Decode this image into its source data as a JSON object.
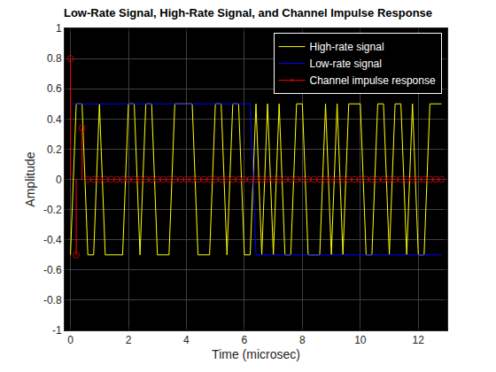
{
  "chart_data": {
    "type": "line",
    "title": "Low-Rate Signal, High-Rate Signal, and Channel Impulse Response",
    "x_label": "Time (microsec)",
    "y_label": "Amplitude",
    "x": [
      0,
      0.2,
      0.4,
      0.6,
      0.8,
      1,
      1.2,
      1.4,
      1.6,
      1.8,
      2,
      2.2,
      2.4,
      2.6,
      2.8,
      3,
      3.2,
      3.4,
      3.6,
      3.8,
      4,
      4.2,
      4.4,
      4.6,
      4.8,
      5,
      5.2,
      5.4,
      5.6,
      5.8,
      6,
      6.2,
      6.4,
      6.6,
      6.8,
      7,
      7.2,
      7.4,
      7.6,
      7.8,
      8,
      8.2,
      8.4,
      8.6,
      8.8,
      9,
      9.2,
      9.4,
      9.6,
      9.8,
      10,
      10.2,
      10.4,
      10.6,
      10.8,
      11,
      11.2,
      11.4,
      11.6,
      11.8,
      12,
      12.2,
      12.4,
      12.6,
      12.8
    ],
    "series": [
      {
        "name": "High-rate signal",
        "color": "#ffff00",
        "type": "line",
        "line_style": "solid",
        "values": [
          -0.5,
          0.5,
          0.5,
          -0.5,
          -0.5,
          0.5,
          -0.5,
          -0.5,
          -0.5,
          -0.5,
          0.5,
          0.5,
          -0.5,
          0.5,
          0.5,
          -0.5,
          -0.5,
          -0.5,
          0.5,
          0.5,
          0.5,
          0.5,
          -0.5,
          -0.5,
          -0.5,
          0.5,
          0.5,
          -0.5,
          0.5,
          0.5,
          -0.5,
          -0.5,
          0.5,
          -0.5,
          0.5,
          -0.5,
          0.5,
          -0.5,
          -0.5,
          0.5,
          0.5,
          -0.5,
          -0.5,
          -0.5,
          0.5,
          -0.5,
          0.5,
          -0.5,
          0.5,
          0.5,
          0.5,
          -0.5,
          -0.5,
          0.5,
          0.5,
          -0.5,
          0.5,
          0.5,
          -0.5,
          0.5,
          -0.5,
          -0.5,
          0.5,
          0.5,
          0.5
        ]
      },
      {
        "name": "Low-rate signal",
        "color": "#0000ff",
        "type": "line",
        "line_style": "solid",
        "values": [
          0.5,
          0.5,
          0.5,
          0.5,
          0.5,
          0.5,
          0.5,
          0.5,
          0.5,
          0.5,
          0.5,
          0.5,
          0.5,
          0.5,
          0.5,
          0.5,
          0.5,
          0.5,
          0.5,
          0.5,
          0.5,
          0.5,
          0.5,
          0.5,
          0.5,
          0.5,
          0.5,
          0.5,
          0.5,
          0.5,
          0.5,
          0.5,
          -0.5,
          -0.5,
          -0.5,
          -0.5,
          -0.5,
          -0.5,
          -0.5,
          -0.5,
          -0.5,
          -0.5,
          -0.5,
          -0.5,
          -0.5,
          -0.5,
          -0.5,
          -0.5,
          -0.5,
          -0.5,
          -0.5,
          -0.5,
          -0.5,
          -0.5,
          -0.5,
          -0.5,
          -0.5,
          -0.5,
          -0.5,
          -0.5,
          -0.5,
          -0.5,
          -0.5,
          -0.5,
          -0.5
        ]
      },
      {
        "name": "Channel impulse response",
        "color": "#ff0000",
        "type": "stem",
        "marker": "circle",
        "values": [
          0.8,
          -0.5,
          0.34,
          0,
          0,
          0,
          0,
          0,
          0,
          0,
          0,
          0,
          0,
          0,
          0,
          0,
          0,
          0,
          0,
          0,
          0,
          0,
          0,
          0,
          0,
          0,
          0,
          0,
          0,
          0,
          0,
          0,
          0,
          0,
          0,
          0,
          0,
          0,
          0,
          0,
          0,
          0,
          0,
          0,
          0,
          0,
          0,
          0,
          0,
          0,
          0,
          0,
          0,
          0,
          0,
          0,
          0,
          0,
          0,
          0,
          0,
          0,
          0,
          0,
          0
        ]
      }
    ],
    "xlim": [
      -0.2,
      13
    ],
    "xticks": [
      0,
      2,
      4,
      6,
      8,
      10,
      12
    ],
    "ylim": [
      -1,
      1
    ],
    "yticks": [
      -1,
      -0.8,
      -0.6,
      -0.4,
      -0.2,
      0,
      0.2,
      0.4,
      0.6,
      0.8,
      1
    ],
    "grid": true,
    "legend": "top right"
  }
}
